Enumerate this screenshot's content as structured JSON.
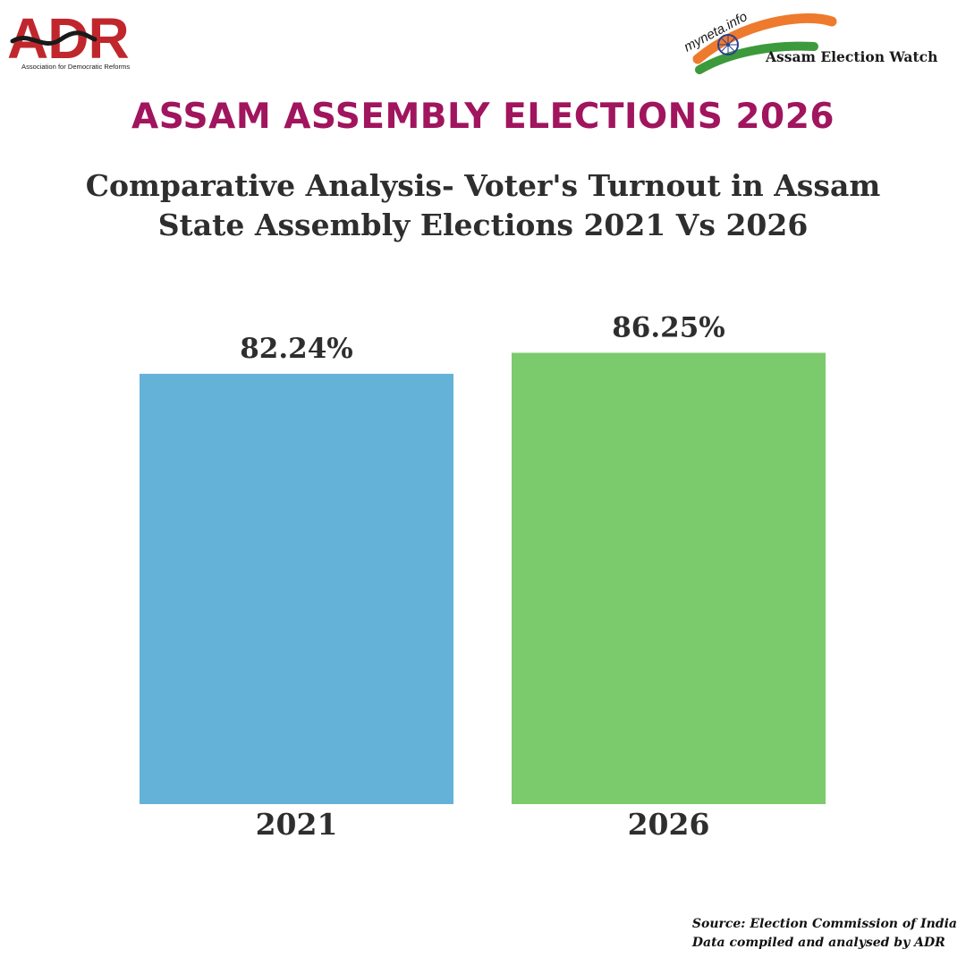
{
  "header": {
    "adr_logo": {
      "wordmark": "ADR",
      "tagline": "Association for Democratic Reforms"
    },
    "myneta_logo": {
      "brand": "myneta.info",
      "label": "Assam Election Watch"
    }
  },
  "headline": "ASSAM ASSEMBLY ELECTIONS 2026",
  "subtitle": {
    "line1": "Comparative Analysis- Voter's Turnout in Assam",
    "line2": "State Assembly Elections 2021 Vs 2026"
  },
  "chart_data": {
    "type": "bar",
    "categories": [
      "2021",
      "2026"
    ],
    "values": [
      82.24,
      86.25
    ],
    "data_labels": [
      "82.24%",
      "86.25%"
    ],
    "colors": [
      "#64b2d8",
      "#7bca6c"
    ],
    "title": "",
    "xlabel": "",
    "ylabel": "",
    "ylim": [
      0,
      100
    ],
    "grid": false,
    "legend": "none"
  },
  "footer": {
    "source": "Source: Election Commission of India",
    "credit": "Data compiled and analysed by ADR"
  },
  "colors": {
    "headline": "#a0155e",
    "text": "#2e2e2e",
    "adr_red": "#c0272d",
    "saffron": "#ee7a2d",
    "green": "#3c9a3c",
    "chakra_blue": "#2a3f8f"
  }
}
